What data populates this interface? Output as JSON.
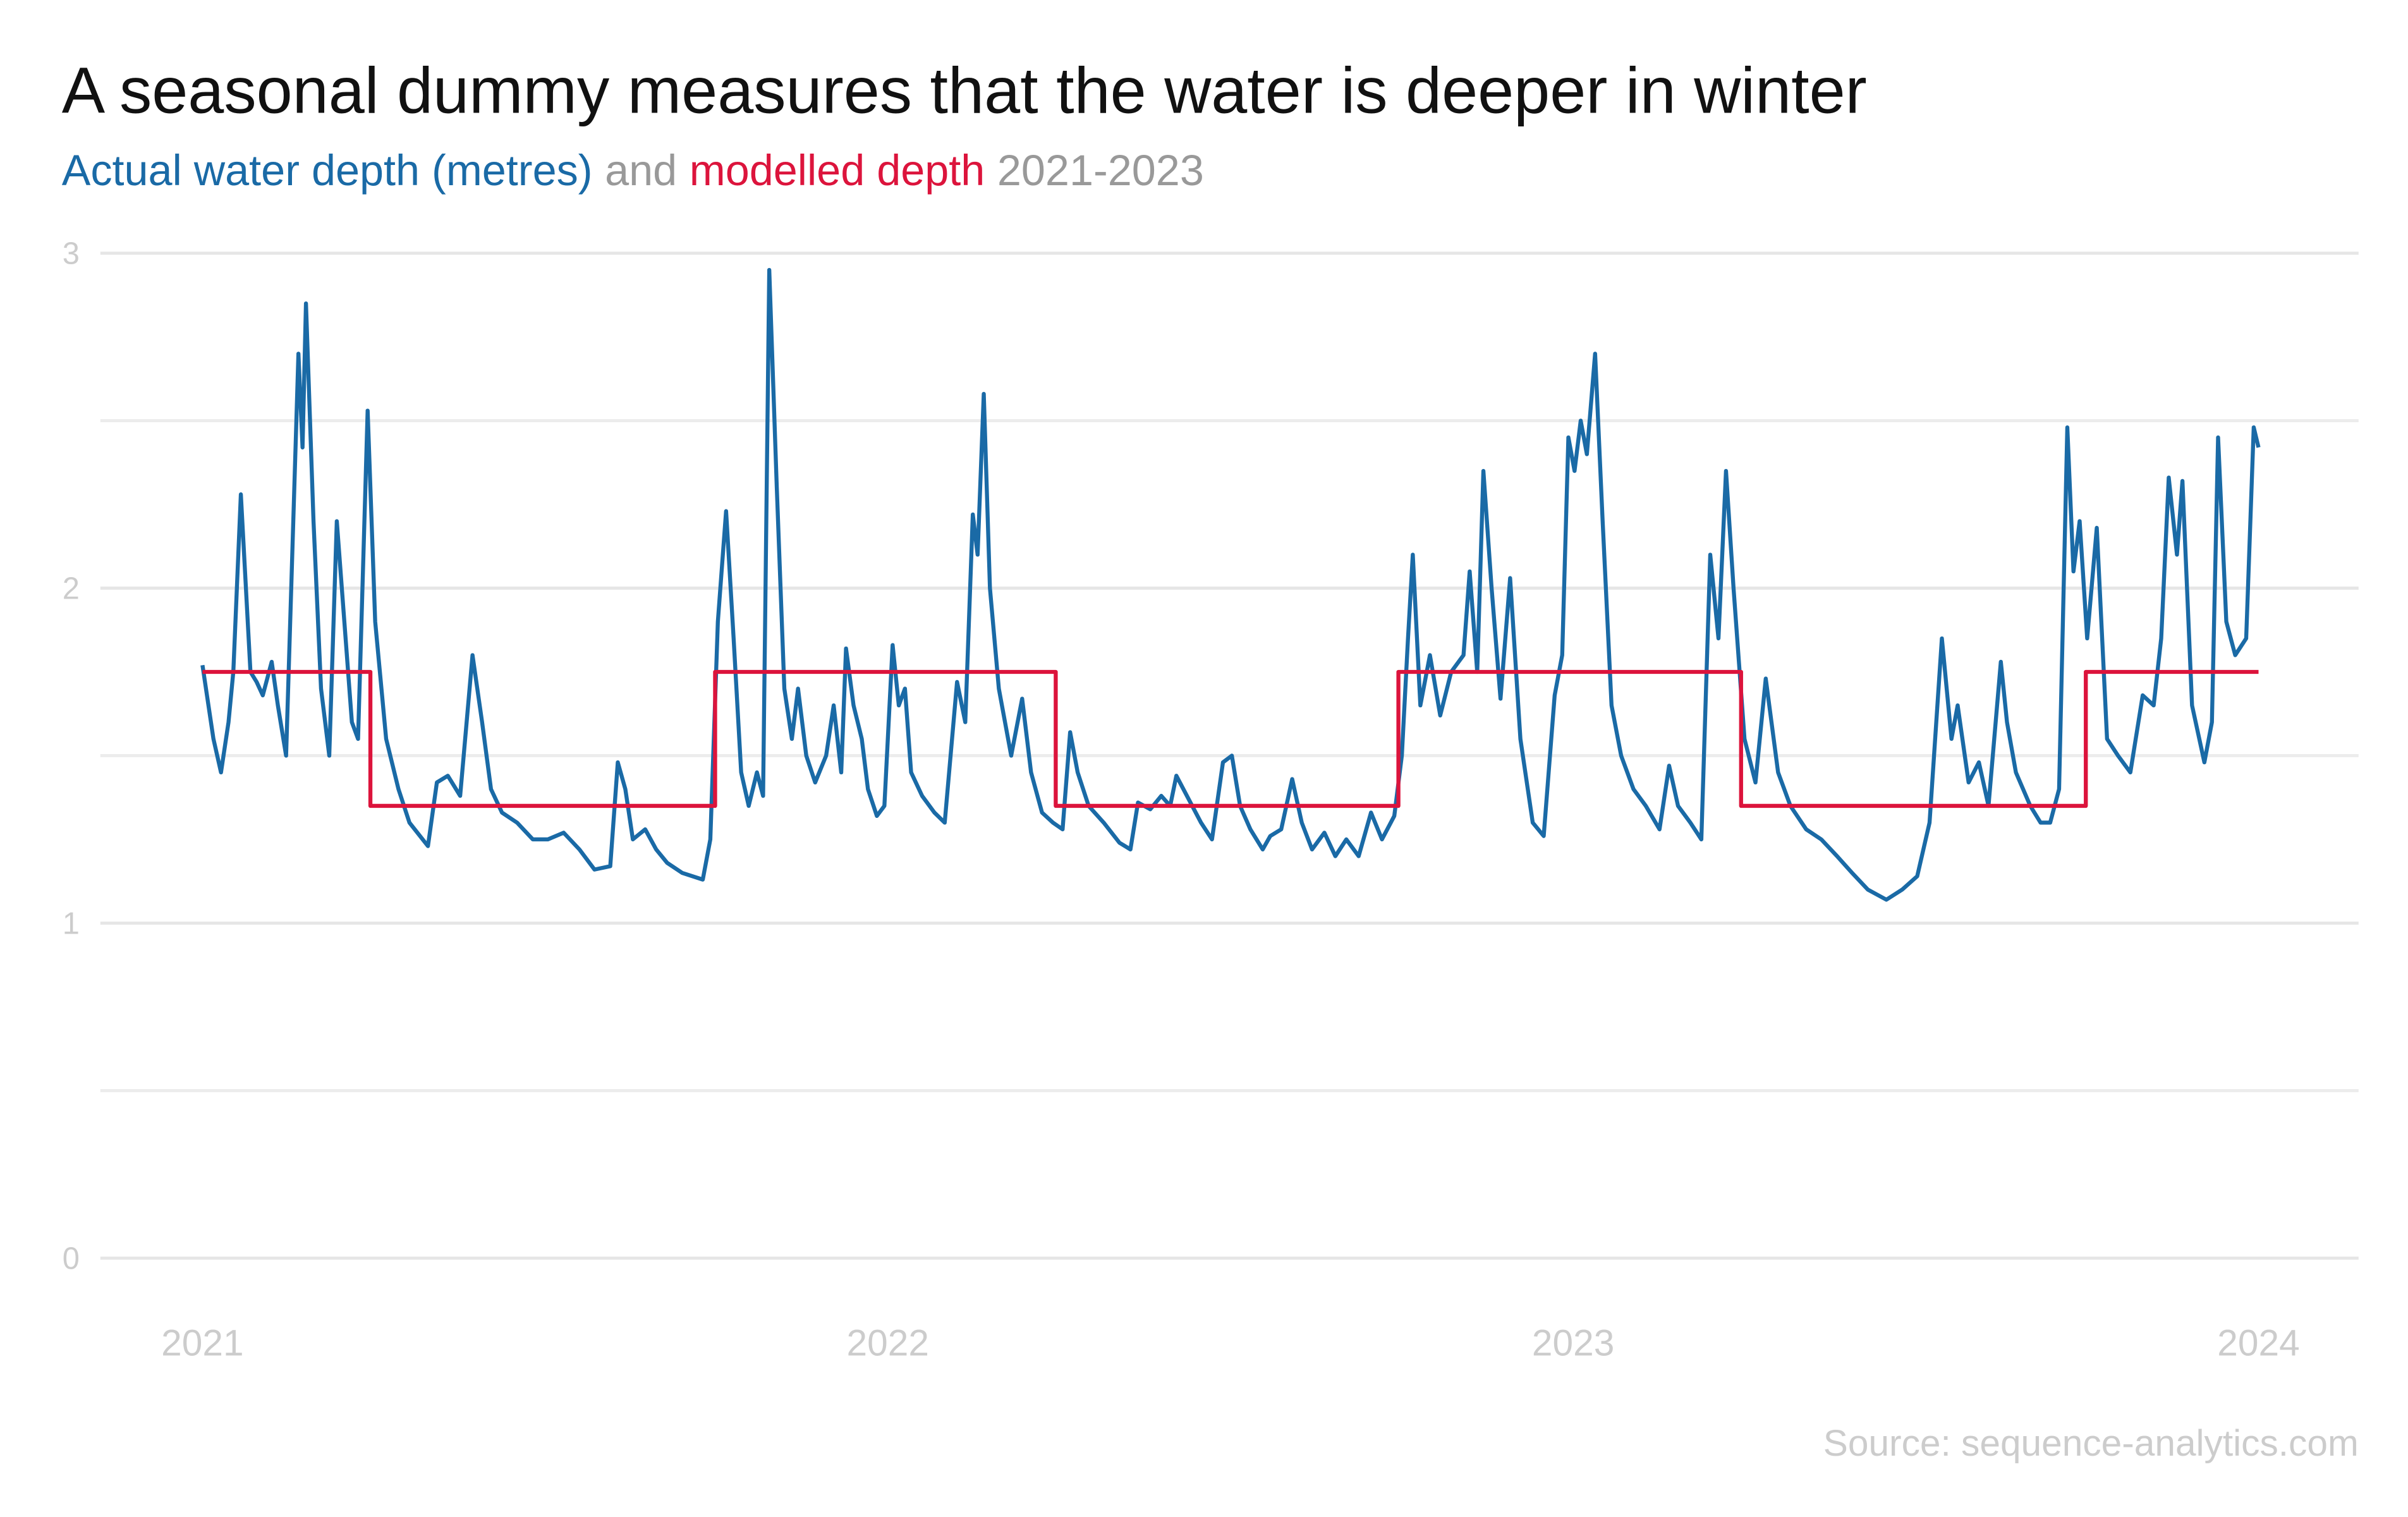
{
  "chart_data": {
    "type": "line",
    "title": "A seasonal dummy measures that the water is deeper in winter",
    "subtitle_joiner": "and",
    "subtitle_period": "2021-2023",
    "source": "Source: sequence-analytics.com",
    "xlim": [
      2020.851,
      2024.146
    ],
    "xticks": [
      2021,
      2022,
      2023,
      2024
    ],
    "ylim": [
      0,
      3
    ],
    "yticks": [
      0,
      1,
      2,
      3
    ],
    "minor_yticks": [
      0.5,
      1.5,
      2.5
    ],
    "grid": true,
    "series": [
      {
        "name": "Actual water depth (metres)",
        "color": "#1a6aa6",
        "x": [
          2021,
          2021.016,
          2021.027,
          2021.038,
          2021.045,
          2021.056,
          2021.07,
          2021.079,
          2021.088,
          2021.101,
          2021.11,
          2021.122,
          2021.14,
          2021.146,
          2021.151,
          2021.162,
          2021.173,
          2021.185,
          2021.196,
          2021.207,
          2021.218,
          2021.227,
          2021.241,
          2021.252,
          2021.268,
          2021.286,
          2021.302,
          2021.329,
          2021.342,
          2021.358,
          2021.376,
          2021.394,
          2021.408,
          2021.421,
          2021.437,
          2021.459,
          2021.482,
          2021.504,
          2021.527,
          2021.55,
          2021.572,
          2021.595,
          2021.606,
          2021.617,
          2021.628,
          2021.646,
          2021.662,
          2021.678,
          2021.7,
          2021.73,
          2021.741,
          2021.752,
          2021.764,
          2021.775,
          2021.786,
          2021.797,
          2021.809,
          2021.818,
          2021.827,
          2021.838,
          2021.849,
          2021.86,
          2021.869,
          2021.881,
          2021.894,
          2021.91,
          2021.921,
          2021.932,
          2021.939,
          2021.95,
          2021.962,
          2021.971,
          2021.984,
          2021.995,
          2022.007,
          2022.016,
          2022.025,
          2022.034,
          2022.05,
          2022.068,
          2022.083,
          2022.101,
          2022.113,
          2022.124,
          2022.131,
          2022.14,
          2022.149,
          2022.162,
          2022.18,
          2022.196,
          2022.209,
          2022.225,
          2022.241,
          2022.255,
          2022.266,
          2022.277,
          2022.293,
          2022.315,
          2022.338,
          2022.354,
          2022.365,
          2022.383,
          2022.399,
          2022.412,
          2022.421,
          2022.439,
          2022.457,
          2022.473,
          2022.489,
          2022.502,
          2022.514,
          2022.529,
          2022.547,
          2022.558,
          2022.574,
          2022.59,
          2022.604,
          2022.619,
          2022.637,
          2022.653,
          2022.669,
          2022.687,
          2022.705,
          2022.721,
          2022.739,
          2022.75,
          2022.759,
          2022.766,
          2022.777,
          2022.791,
          2022.806,
          2022.822,
          2022.84,
          2022.849,
          2022.86,
          2022.869,
          2022.881,
          2022.894,
          2022.908,
          2022.923,
          2022.941,
          2022.957,
          2022.973,
          2022.984,
          2022.993,
          2023.002,
          2023.011,
          2023.02,
          2023.032,
          2023.043,
          2023.056,
          2023.07,
          2023.088,
          2023.106,
          2023.126,
          2023.14,
          2023.153,
          2023.171,
          2023.187,
          2023.2,
          2023.212,
          2023.223,
          2023.234,
          2023.25,
          2023.266,
          2023.281,
          2023.299,
          2023.317,
          2023.34,
          2023.362,
          2023.385,
          2023.407,
          2023.43,
          2023.457,
          2023.48,
          2023.502,
          2023.52,
          2023.538,
          2023.552,
          2023.561,
          2023.577,
          2023.592,
          2023.606,
          2023.624,
          2023.633,
          2023.646,
          2023.667,
          2023.682,
          2023.696,
          2023.709,
          2023.721,
          2023.73,
          2023.739,
          2023.75,
          2023.764,
          2023.779,
          2023.795,
          2023.813,
          2023.831,
          2023.847,
          2023.858,
          2023.869,
          2023.881,
          2023.889,
          2023.903,
          2023.921,
          2023.932,
          2023.941,
          2023.953,
          2023.966,
          2023.982,
          2023.993,
          2024
        ],
        "values": [
          1.77,
          1.55,
          1.45,
          1.6,
          1.75,
          2.28,
          1.75,
          1.72,
          1.68,
          1.78,
          1.65,
          1.5,
          2.7,
          2.42,
          2.85,
          2.2,
          1.7,
          1.5,
          2.2,
          1.9,
          1.6,
          1.55,
          2.53,
          1.9,
          1.55,
          1.4,
          1.3,
          1.23,
          1.42,
          1.44,
          1.38,
          1.8,
          1.6,
          1.4,
          1.33,
          1.3,
          1.25,
          1.25,
          1.27,
          1.22,
          1.16,
          1.17,
          1.48,
          1.4,
          1.25,
          1.28,
          1.22,
          1.18,
          1.15,
          1.13,
          1.25,
          1.9,
          2.23,
          1.85,
          1.45,
          1.35,
          1.45,
          1.38,
          2.95,
          2.3,
          1.7,
          1.55,
          1.7,
          1.5,
          1.42,
          1.5,
          1.65,
          1.45,
          1.82,
          1.65,
          1.55,
          1.4,
          1.32,
          1.35,
          1.83,
          1.65,
          1.7,
          1.45,
          1.38,
          1.33,
          1.3,
          1.72,
          1.6,
          2.22,
          2.1,
          2.58,
          2.0,
          1.7,
          1.5,
          1.67,
          1.45,
          1.33,
          1.3,
          1.28,
          1.57,
          1.45,
          1.35,
          1.3,
          1.24,
          1.22,
          1.36,
          1.34,
          1.38,
          1.35,
          1.44,
          1.37,
          1.3,
          1.25,
          1.48,
          1.5,
          1.35,
          1.28,
          1.22,
          1.26,
          1.28,
          1.43,
          1.3,
          1.22,
          1.27,
          1.2,
          1.25,
          1.2,
          1.33,
          1.25,
          1.32,
          1.5,
          1.85,
          2.1,
          1.65,
          1.8,
          1.62,
          1.75,
          1.8,
          2.05,
          1.75,
          2.35,
          2.0,
          1.67,
          2.03,
          1.55,
          1.3,
          1.26,
          1.68,
          1.8,
          2.45,
          2.35,
          2.5,
          2.4,
          2.7,
          2.2,
          1.65,
          1.5,
          1.4,
          1.35,
          1.28,
          1.47,
          1.35,
          1.3,
          1.25,
          2.1,
          1.85,
          2.35,
          2.0,
          1.55,
          1.42,
          1.73,
          1.45,
          1.35,
          1.28,
          1.25,
          1.2,
          1.15,
          1.1,
          1.07,
          1.1,
          1.14,
          1.3,
          1.85,
          1.55,
          1.65,
          1.42,
          1.48,
          1.35,
          1.78,
          1.6,
          1.45,
          1.35,
          1.3,
          1.3,
          1.4,
          2.48,
          2.05,
          2.2,
          1.85,
          2.18,
          1.55,
          1.5,
          1.45,
          1.68,
          1.65,
          1.85,
          2.33,
          2.1,
          2.32,
          1.65,
          1.48,
          1.6,
          2.45,
          1.9,
          1.8,
          1.85,
          2.48,
          2.42
        ]
      },
      {
        "name": "modelled depth",
        "color": "#dc143c",
        "x": [
          2021,
          2021.245,
          2021.245,
          2021.748,
          2021.748,
          2022.245,
          2022.245,
          2022.745,
          2022.745,
          2023.245,
          2023.245,
          2023.748,
          2023.748,
          2024
        ],
        "values": [
          1.75,
          1.75,
          1.35,
          1.35,
          1.75,
          1.75,
          1.35,
          1.35,
          1.75,
          1.75,
          1.35,
          1.35,
          1.75,
          1.75
        ]
      }
    ]
  }
}
